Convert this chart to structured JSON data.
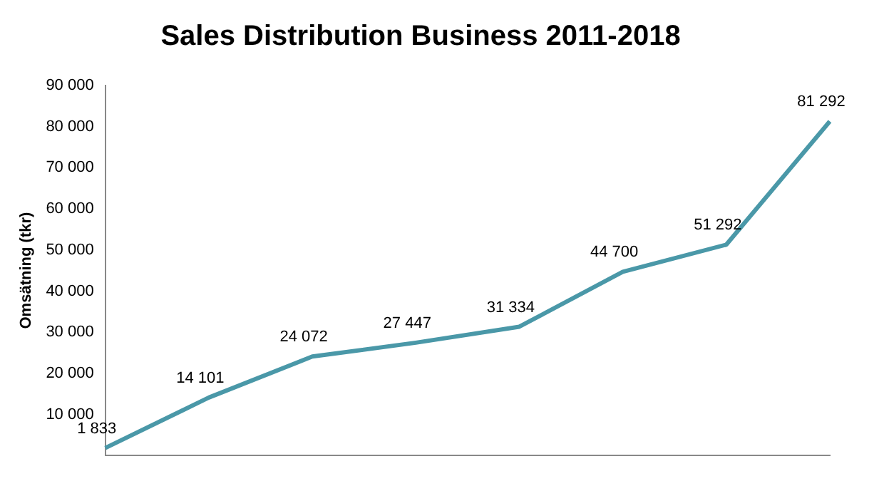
{
  "chart_data": {
    "type": "line",
    "title": "Sales Distribution Business 2011-2018",
    "ylabel": "Omsätning (tkr)",
    "categories": [
      null,
      null,
      null,
      null,
      null,
      null,
      null,
      null
    ],
    "series": [
      {
        "color": "#4a98a8",
        "values": [
          1833,
          14101,
          24072,
          27447,
          31334,
          44700,
          51292,
          81292
        ],
        "value_labels": [
          "1 833",
          "14 101",
          "24 072",
          "27 447",
          "31 334",
          "44 700",
          "51 292",
          "81 292"
        ]
      }
    ],
    "ylim": [
      0,
      90000
    ],
    "yticks": [
      {
        "value": 10000,
        "label": "10 000"
      },
      {
        "value": 20000,
        "label": "20 000"
      },
      {
        "value": 30000,
        "label": "30 000"
      },
      {
        "value": 40000,
        "label": "40 000"
      },
      {
        "value": 50000,
        "label": "50 000"
      },
      {
        "value": 60000,
        "label": "60 000"
      },
      {
        "value": 70000,
        "label": "70 000"
      },
      {
        "value": 80000,
        "label": "80 000"
      },
      {
        "value": 90000,
        "label": "90 000"
      }
    ],
    "grid": false,
    "legend": false,
    "marker": "none",
    "line_style": "solid"
  }
}
